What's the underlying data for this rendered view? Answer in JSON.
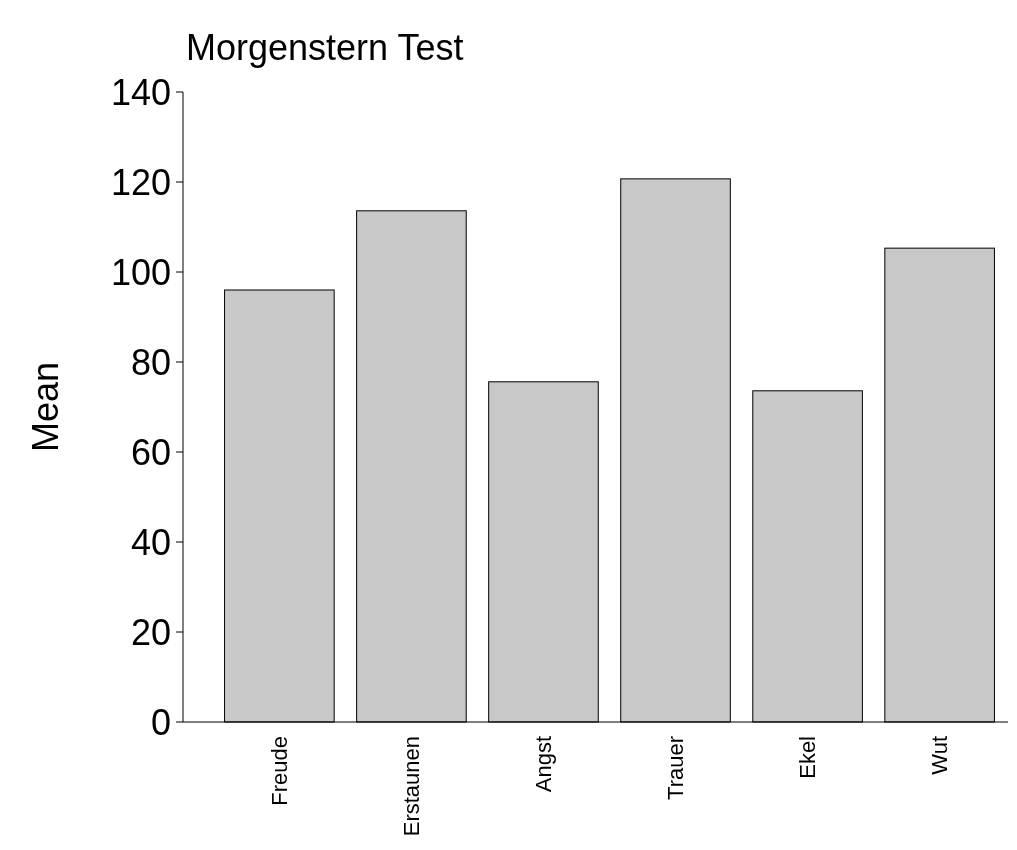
{
  "chart_data": {
    "type": "bar",
    "title": "Morgenstern Test",
    "ylabel": "Mean",
    "categories": [
      "Freude",
      "Erstaunen",
      "Angst",
      "Trauer",
      "Ekel",
      "Wut"
    ],
    "values": [
      96,
      113.6,
      75.6,
      120.7,
      73.6,
      105.3
    ],
    "color": "#c8c8c8",
    "ylim": [
      0,
      140
    ],
    "yticks": [
      0,
      20,
      40,
      60,
      80,
      100,
      120,
      140
    ]
  }
}
